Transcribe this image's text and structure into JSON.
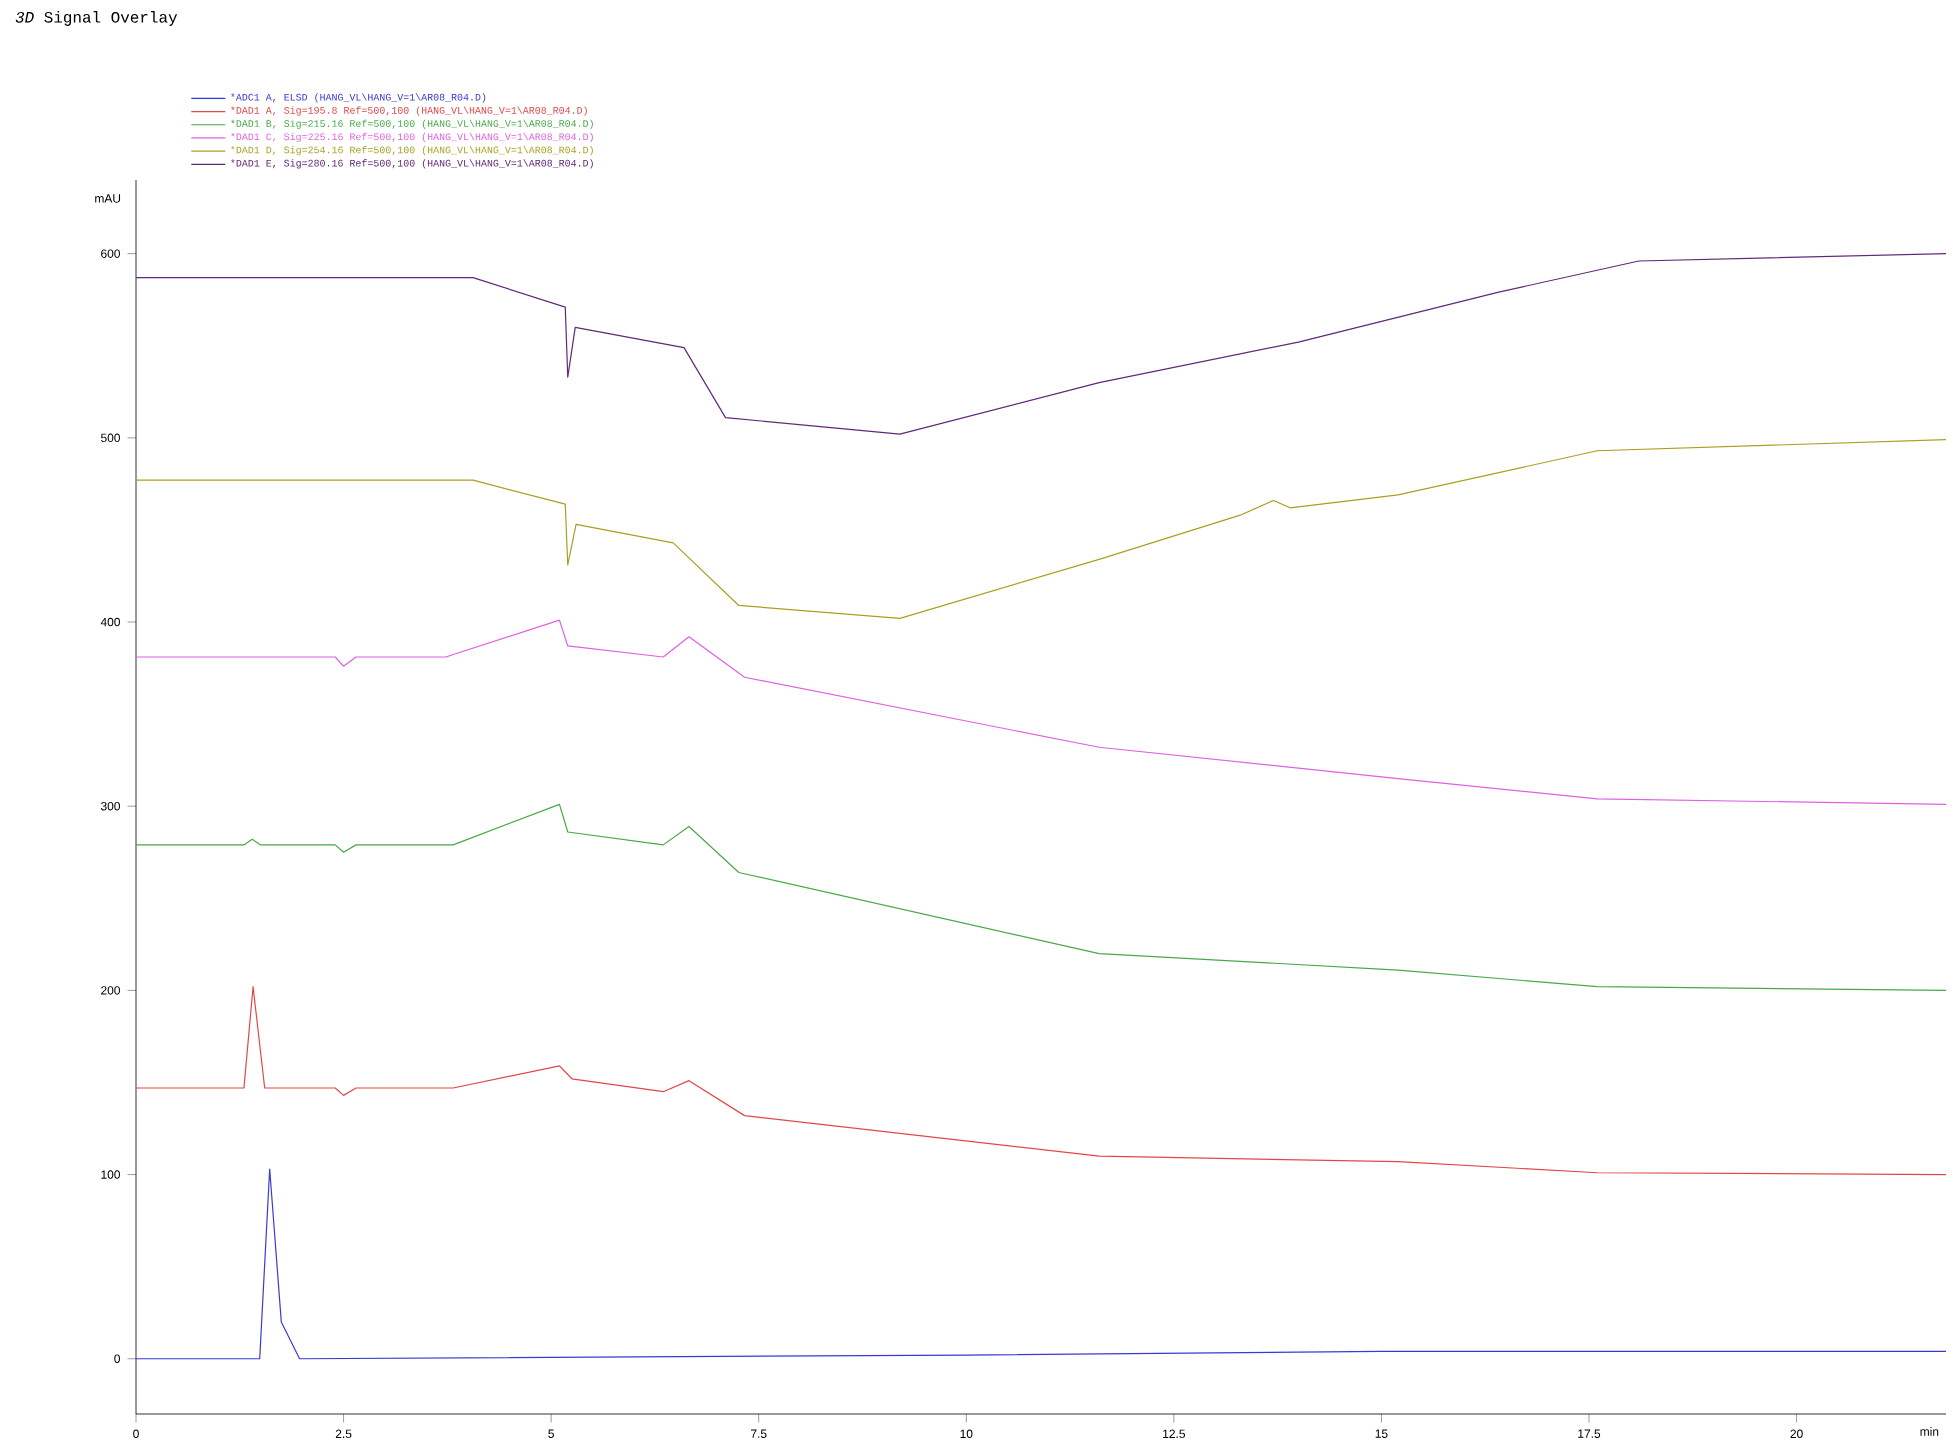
{
  "chart_data": {
    "type": "line",
    "title": "*3D* Signal Overlay",
    "xlabel": "min",
    "ylabel": "mAU",
    "xlim": [
      0,
      21.8
    ],
    "ylim": [
      -30,
      640
    ],
    "xticks": [
      0,
      2.5,
      5,
      7.5,
      10,
      12.5,
      15,
      17.5,
      20
    ],
    "yticks": [
      0,
      100,
      200,
      300,
      400,
      500,
      600
    ],
    "grid": false,
    "legend": "top left",
    "marker": "none",
    "line_style": "solid",
    "series": [
      {
        "name": "*ADC1 A, ELSD (HANG_VL\\HANG_V=1\\AR08_R04.D)",
        "color": "#3a3ad0",
        "x": [
          0,
          1.49,
          1.61,
          1.75,
          1.97,
          10,
          15,
          21.8
        ],
        "values": [
          0,
          0,
          103,
          20,
          0,
          2,
          4,
          4
        ]
      },
      {
        "name": "*DAD1 A, Sig=195.8 Ref=500,100 (HANG_VL\\HANG_V=1\\AR08_R04.D)",
        "color": "#e04848",
        "x": [
          0,
          1.3,
          1.41,
          1.55,
          2.4,
          2.5,
          2.65,
          3.82,
          5.1,
          5.25,
          6.35,
          6.66,
          7.33,
          11.6,
          15.2,
          17.6,
          21.8
        ],
        "values": [
          147,
          147,
          202,
          147,
          147,
          143,
          147,
          147,
          159,
          152,
          145,
          151,
          132,
          110,
          107,
          101,
          100
        ]
      },
      {
        "name": "*DAD1 B, Sig=215.16 Ref=500,100 (HANG_VL\\HANG_V=1\\AR08_R04.D)",
        "color": "#48a848",
        "x": [
          0,
          1.3,
          1.4,
          1.5,
          2.4,
          2.5,
          2.65,
          3.82,
          5.1,
          5.2,
          6.35,
          6.66,
          7.26,
          11.6,
          15.2,
          17.6,
          21.8
        ],
        "values": [
          279,
          279,
          282,
          279,
          279,
          275,
          279,
          279,
          301,
          286,
          279,
          289,
          264,
          220,
          211,
          202,
          200
        ]
      },
      {
        "name": "*DAD1 C, Sig=225.16 Ref=500,100 (HANG_VL\\HANG_V=1\\AR08_R04.D)",
        "color": "#e060e0",
        "x": [
          0,
          2.4,
          2.5,
          2.65,
          3.73,
          5.1,
          5.2,
          6.35,
          6.66,
          7.33,
          11.6,
          15.2,
          17.6,
          21.8
        ],
        "values": [
          381,
          381,
          376,
          381,
          381,
          401,
          387,
          381,
          392,
          370,
          332,
          315,
          304,
          301
        ]
      },
      {
        "name": "*DAD1 D, Sig=254.16 Ref=500,100 (HANG_VL\\HANG_V=1\\AR08_R04.D)",
        "color": "#a8a020",
        "x": [
          0,
          4.06,
          5.17,
          5.2,
          5.3,
          6.47,
          7.26,
          9.2,
          11.6,
          13.3,
          13.7,
          13.9,
          15.2,
          17.6,
          21.8
        ],
        "values": [
          477,
          477,
          464,
          431,
          453,
          443,
          409,
          402,
          434,
          458,
          466,
          462,
          469,
          493,
          499
        ]
      },
      {
        "name": "*DAD1 E, Sig=280.16 Ref=500,100 (HANG_VL\\HANG_V=1\\AR08_R04.D)",
        "color": "#602878",
        "x": [
          0,
          4.06,
          5.17,
          5.2,
          5.29,
          6.6,
          7.1,
          9.2,
          11.6,
          14.0,
          16.4,
          18.1,
          21.8
        ],
        "values": [
          587,
          587,
          571,
          533,
          560,
          549,
          511,
          502,
          530,
          552,
          579,
          596,
          600
        ]
      }
    ]
  }
}
